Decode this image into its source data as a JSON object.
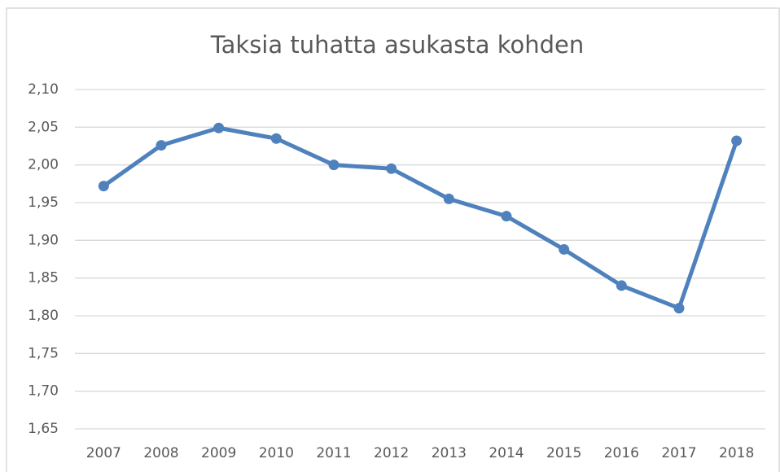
{
  "chart_data": {
    "type": "line",
    "title": "Taksia tuhatta asukasta kohden",
    "categories": [
      "2007",
      "2008",
      "2009",
      "2010",
      "2011",
      "2012",
      "2013",
      "2014",
      "2015",
      "2016",
      "2017",
      "2018"
    ],
    "series": [
      {
        "name": "Taksia tuhatta asukasta kohden",
        "color": "#4f81bd",
        "values": [
          1.972,
          2.026,
          2.049,
          2.035,
          2.0,
          1.995,
          1.955,
          1.932,
          1.888,
          1.84,
          1.81,
          2.032
        ]
      }
    ],
    "ylim": [
      1.65,
      2.1
    ],
    "yticks": [
      {
        "value": 1.65,
        "label": "1,65"
      },
      {
        "value": 1.7,
        "label": "1,70"
      },
      {
        "value": 1.75,
        "label": "1,75"
      },
      {
        "value": 1.8,
        "label": "1,80"
      },
      {
        "value": 1.85,
        "label": "1,85"
      },
      {
        "value": 1.9,
        "label": "1,90"
      },
      {
        "value": 1.95,
        "label": "1,95"
      },
      {
        "value": 2.0,
        "label": "2,00"
      },
      {
        "value": 2.05,
        "label": "2,05"
      },
      {
        "value": 2.1,
        "label": "2,10"
      }
    ],
    "grid": true
  }
}
